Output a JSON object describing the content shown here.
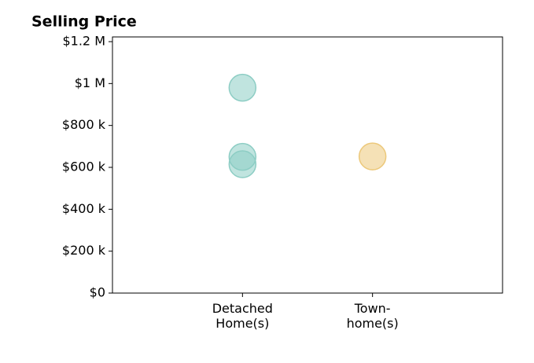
{
  "chart_data": {
    "type": "scatter",
    "title": "Selling Price",
    "series": [
      {
        "color": "#8dcdc4",
        "x": [
          1,
          1,
          1
        ],
        "values": [
          980000,
          650000,
          615000
        ]
      },
      {
        "color": "#ecc87a",
        "x": [
          2
        ],
        "values": [
          652000
        ]
      }
    ],
    "xlim": [
      0,
      3
    ],
    "xticks": [
      {
        "value": 1,
        "label": "Detached\nHome(s)"
      },
      {
        "value": 2,
        "label": "Town-\nhome(s)"
      }
    ],
    "ylim": [
      0,
      1222500
    ],
    "yticks": [
      {
        "value": 0,
        "label": "$0"
      },
      {
        "value": 200000,
        "label": "$200 k"
      },
      {
        "value": 400000,
        "label": "$400 k"
      },
      {
        "value": 600000,
        "label": "$600 k"
      },
      {
        "value": 800000,
        "label": "$800 k"
      },
      {
        "value": 1000000,
        "label": "$1 M"
      },
      {
        "value": 1200000,
        "label": "$1.2 M"
      }
    ]
  }
}
